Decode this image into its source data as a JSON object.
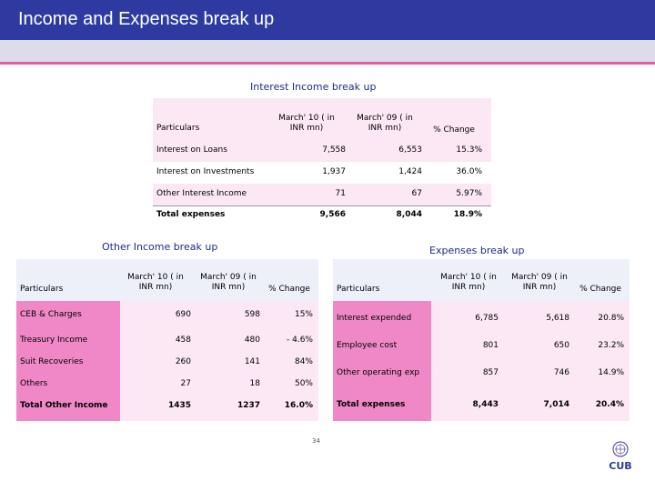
{
  "header": {
    "title": "Income and Expenses break up"
  },
  "interest_income": {
    "title": "Interest Income break up",
    "columns": [
      "Particulars",
      "March' 10 ( in INR mn)",
      "March' 09 ( in INR mn)",
      "% Change"
    ],
    "rows": [
      {
        "label": "Interest on Loans",
        "m10": "7,558",
        "m09": "6,553",
        "change": "15.3%"
      },
      {
        "label": "Interest on Investments",
        "m10": "1,937",
        "m09": "1,424",
        "change": "36.0%"
      },
      {
        "label": "Other Interest Income",
        "m10": "71",
        "m09": "67",
        "change": "5.97%"
      },
      {
        "label": "Total expenses",
        "m10": "9,566",
        "m09": "8,044",
        "change": "18.9%"
      }
    ]
  },
  "other_income": {
    "title": "Other Income break up",
    "columns": [
      "Particulars",
      "March' 10 ( in INR mn)",
      "March' 09 ( in INR mn)",
      "% Change"
    ],
    "rows": [
      {
        "label": "CEB & Charges",
        "m10": "690",
        "m09": "598",
        "change": "15%"
      },
      {
        "label": "Treasury Income",
        "m10": "458",
        "m09": "480",
        "change": "- 4.6%"
      },
      {
        "label": "Suit Recoveries",
        "m10": "260",
        "m09": "141",
        "change": "84%"
      },
      {
        "label": "Others",
        "m10": "27",
        "m09": "18",
        "change": "50%"
      },
      {
        "label": "Total Other Income",
        "m10": "1435",
        "m09": "1237",
        "change": "16.0%"
      }
    ]
  },
  "expenses": {
    "title": "Expenses break up",
    "columns": [
      "Particulars",
      "March' 10 ( in INR mn)",
      "March' 09 ( in INR mn)",
      "% Change"
    ],
    "rows": [
      {
        "label": "Interest expended",
        "m10": "6,785",
        "m09": "5,618",
        "change": "20.8%"
      },
      {
        "label": "Employee cost",
        "m10": "801",
        "m09": "650",
        "change": "23.2%"
      },
      {
        "label": "Other operating exp",
        "m10": "857",
        "m09": "746",
        "change": "14.9%"
      },
      {
        "label": "Total expenses",
        "m10": "8,443",
        "m09": "7,014",
        "change": "20.4%"
      }
    ]
  },
  "footer": {
    "page_number": "34",
    "logo_text": "CUB"
  },
  "colors": {
    "header_blue": "#2f3aa0",
    "accent_pink": "#e05a9e",
    "row_pink": "#fbe8f4",
    "label_pink": "#f088c8"
  }
}
